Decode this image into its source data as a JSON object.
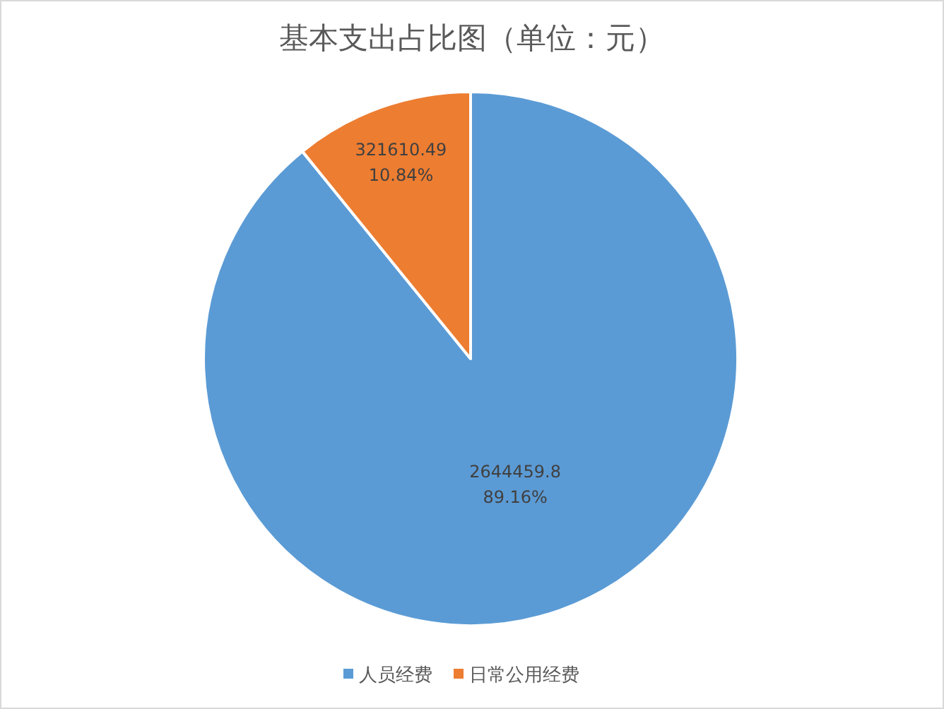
{
  "chart_data": {
    "type": "pie",
    "title": "基本支出占比图（单位：元）",
    "categories": [
      "人员经费",
      "日常公用经费"
    ],
    "values": [
      2644459.8,
      321610.49
    ],
    "colors": [
      "#5b9bd5",
      "#ed7d31"
    ],
    "value_labels": [
      "2644459.8\n89.16%",
      "321610.49\n10.84%"
    ],
    "legend": "bottom"
  }
}
